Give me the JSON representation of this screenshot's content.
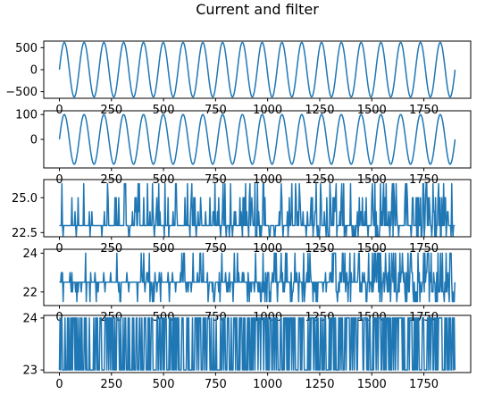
{
  "figure": {
    "title": "Current and filter"
  },
  "chart_data": [
    {
      "type": "line",
      "xlim": [
        -75,
        1975
      ],
      "ylim": [
        -650,
        650
      ],
      "xticks": [
        0,
        250,
        500,
        750,
        1000,
        1250,
        1500,
        1750
      ],
      "yticks": [
        500,
        0,
        -500
      ],
      "ytick_labels": [
        "500",
        "0",
        "−500"
      ],
      "series": [
        {
          "kind": "sine",
          "amplitude": 620,
          "period": 95,
          "phase": 0,
          "x_start": 0,
          "x_end": 1900
        }
      ]
    },
    {
      "type": "line",
      "xlim": [
        -75,
        1975
      ],
      "ylim": [
        -115,
        115
      ],
      "xticks": [
        0,
        250,
        500,
        750,
        1000,
        1250,
        1500,
        1750
      ],
      "yticks": [
        100,
        0
      ],
      "ytick_labels": [
        "100",
        "0"
      ],
      "series": [
        {
          "kind": "sine",
          "amplitude": 100,
          "period": 95,
          "phase": 0,
          "x_start": 0,
          "x_end": 1900
        }
      ]
    },
    {
      "type": "line",
      "xlim": [
        -75,
        1975
      ],
      "ylim": [
        22.2,
        26.3
      ],
      "xticks": [
        0,
        250,
        500,
        750,
        1000,
        1250,
        1500,
        1750
      ],
      "yticks": [
        25.0,
        22.5
      ],
      "ytick_labels": [
        "25.0",
        "22.5"
      ],
      "series": [
        {
          "kind": "noisy-levels",
          "x_start": 0,
          "x_end": 1900,
          "levels": [
            22.2,
            23.0,
            24.0,
            25.0,
            26.0
          ],
          "base": 23.0,
          "seed": 7
        }
      ]
    },
    {
      "type": "line",
      "xlim": [
        -75,
        1975
      ],
      "ylim": [
        21.3,
        24.2
      ],
      "xticks": [
        0,
        250,
        500,
        750,
        1000,
        1250,
        1500,
        1750
      ],
      "yticks": [
        24,
        22
      ],
      "ytick_labels": [
        "24",
        "22"
      ],
      "series": [
        {
          "kind": "noisy-levels",
          "x_start": 0,
          "x_end": 1900,
          "levels": [
            21.5,
            22.0,
            23.0,
            24.0
          ],
          "base": 22.5,
          "seed": 11
        }
      ]
    },
    {
      "type": "line",
      "xlim": [
        -75,
        1975
      ],
      "ylim": [
        22.95,
        24.05
      ],
      "xticks": [
        0,
        250,
        500,
        750,
        1000,
        1250,
        1500,
        1750
      ],
      "yticks": [
        24,
        23
      ],
      "ytick_labels": [
        "24",
        "23"
      ],
      "series": [
        {
          "kind": "binary-toggle",
          "x_start": 0,
          "x_end": 1900,
          "levels": [
            23,
            24
          ],
          "seed": 5
        }
      ]
    }
  ]
}
